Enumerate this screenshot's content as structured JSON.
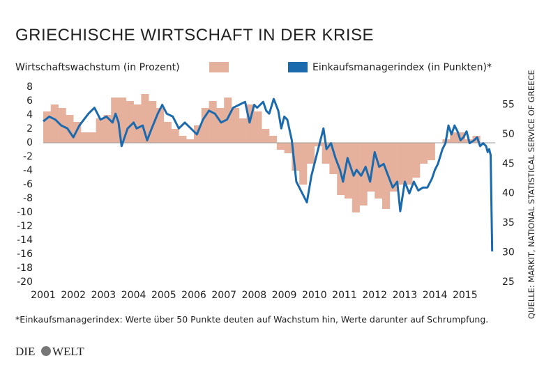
{
  "chart_data": {
    "type": "dual-axis",
    "title": "GRIECHISCHE WIRTSCHAFT IN DER KRISE",
    "footnote": "*Einkaufsmanagerindex: Werte über 50 Punkte deuten auf Wachstum hin, Werte darunter auf Schrumpfung.",
    "source": "QUELLE: MARKIT, NATIONAL STATISTICAL SERVICE OF GREECE",
    "xlim": [
      2001,
      2016
    ],
    "xticks": [
      2001,
      2002,
      2003,
      2004,
      2005,
      2006,
      2007,
      2008,
      2009,
      2010,
      2011,
      2012,
      2013,
      2014,
      2015
    ],
    "ylim": [
      -20,
      8
    ],
    "yticks": [
      -20,
      -18,
      -16,
      -14,
      -12,
      -10,
      -8,
      -6,
      -4,
      -2,
      0,
      2,
      4,
      6,
      8
    ],
    "y2lim": [
      25,
      58
    ],
    "y2ticks": [
      25,
      30,
      35,
      40,
      45,
      50,
      55
    ],
    "grid": false,
    "series": [
      {
        "name": "Wirtschaftswachstum (in Prozent)",
        "type": "step-area",
        "color": "#e6b19c",
        "x": [
          2001,
          2001.25,
          2001.5,
          2001.75,
          2002,
          2002.25,
          2002.5,
          2002.75,
          2003,
          2003.25,
          2003.5,
          2003.75,
          2004,
          2004.25,
          2004.5,
          2004.75,
          2005,
          2005.25,
          2005.5,
          2005.75,
          2006,
          2006.25,
          2006.5,
          2006.75,
          2007,
          2007.25,
          2007.5,
          2007.75,
          2008,
          2008.25,
          2008.5,
          2008.75,
          2009,
          2009.25,
          2009.5,
          2009.75,
          2010,
          2010.25,
          2010.5,
          2010.75,
          2011,
          2011.25,
          2011.5,
          2011.75,
          2012,
          2012.25,
          2012.5,
          2012.75,
          2013,
          2013.25,
          2013.5,
          2013.75,
          2014,
          2014.25,
          2014.5,
          2014.75,
          2015,
          2015.25
        ],
        "values": [
          4.5,
          5.5,
          5,
          4,
          3,
          1.5,
          1.5,
          3.5,
          4,
          6.5,
          6.5,
          6,
          5.5,
          7,
          6,
          5,
          3,
          2,
          1,
          0.5,
          2.5,
          5,
          6,
          5,
          6.5,
          5,
          3.5,
          5.5,
          4.5,
          2,
          1,
          -1,
          -1.5,
          -4,
          -6,
          -3,
          -0.5,
          -3,
          -4.5,
          -7.5,
          -8,
          -10,
          -9,
          -7,
          -8,
          -9.5,
          -7,
          -6,
          -6,
          -5,
          -3,
          -2.5,
          0,
          0.5,
          1.5,
          1.5,
          0.5,
          1
        ]
      },
      {
        "name": "Einkaufsmanagerindex (in Punkten)*",
        "type": "line",
        "axis": "y2",
        "color": "#1b6aae",
        "x": [
          2001,
          2001.2,
          2001.4,
          2001.6,
          2001.8,
          2002,
          2002.2,
          2002.5,
          2002.7,
          2002.9,
          2003.1,
          2003.3,
          2003.4,
          2003.5,
          2003.6,
          2003.8,
          2004,
          2004.1,
          2004.3,
          2004.45,
          2004.6,
          2004.8,
          2004.95,
          2005.1,
          2005.3,
          2005.5,
          2005.7,
          2005.9,
          2006.1,
          2006.3,
          2006.5,
          2006.7,
          2006.9,
          2007.1,
          2007.3,
          2007.5,
          2007.7,
          2007.85,
          2008,
          2008.1,
          2008.3,
          2008.4,
          2008.5,
          2008.65,
          2008.8,
          2008.9,
          2009,
          2009.1,
          2009.25,
          2009.4,
          2009.6,
          2009.75,
          2009.9,
          2010.1,
          2010.3,
          2010.4,
          2010.55,
          2010.7,
          2010.85,
          2010.95,
          2011.1,
          2011.3,
          2011.4,
          2011.55,
          2011.7,
          2011.85,
          2012,
          2012.15,
          2012.3,
          2012.45,
          2012.6,
          2012.75,
          2012.85,
          2013,
          2013.15,
          2013.3,
          2013.45,
          2013.6,
          2013.75,
          2013.9,
          2014,
          2014.1,
          2014.25,
          2014.35,
          2014.45,
          2014.55,
          2014.65,
          2014.75,
          2014.85,
          2014.95,
          2015.05,
          2015.15,
          2015.3,
          2015.4,
          2015.5,
          2015.6,
          2015.7,
          2015.75,
          2015.8,
          2015.85,
          2015.9
        ],
        "values": [
          52.2,
          53,
          52.5,
          51.5,
          51,
          49.5,
          51.5,
          53.5,
          54.5,
          52.5,
          53,
          52,
          53.5,
          52,
          48,
          51,
          52,
          51,
          51.5,
          49,
          51,
          53.5,
          55,
          53.5,
          53,
          51,
          52,
          51,
          50,
          52.5,
          54,
          53.5,
          52,
          52.5,
          54.5,
          55,
          55.5,
          52,
          55,
          54.5,
          55.5,
          54,
          53.5,
          56,
          54,
          51,
          53,
          52.5,
          49,
          42,
          40,
          38.5,
          43,
          47,
          51,
          47.5,
          48.5,
          46,
          44,
          42,
          46,
          43,
          44,
          43,
          44.5,
          42,
          47,
          44.5,
          45,
          43,
          41,
          42,
          37,
          42,
          40,
          42,
          40.5,
          41,
          41,
          42.5,
          44,
          45,
          47.5,
          48.5,
          51.5,
          50,
          51.5,
          50.5,
          49,
          49.5,
          50.5,
          48.5,
          49,
          49.5,
          48,
          48.5,
          48,
          47,
          47.5,
          46.5,
          30.2
        ]
      }
    ]
  },
  "logo": {
    "left": "DIE",
    "right": "WELT"
  }
}
